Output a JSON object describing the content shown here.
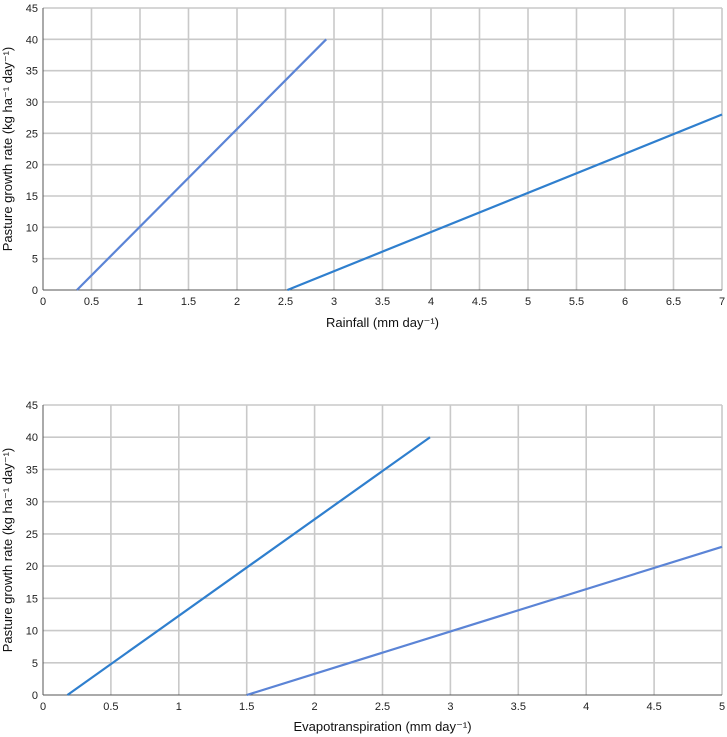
{
  "chart_data": [
    {
      "type": "line",
      "xlabel": "Rainfall (mm day⁻¹)",
      "ylabel": "Pasture growth rate (kg ha⁻¹ day⁻¹)",
      "xlim": [
        0,
        7
      ],
      "ylim": [
        0,
        45
      ],
      "xticks": [
        "0",
        "0.5",
        "1",
        "1.5",
        "2",
        "2.5",
        "3",
        "3.5",
        "4",
        "4.5",
        "5",
        "5.5",
        "6",
        "6.5",
        "7"
      ],
      "yticks": [
        "0",
        "5",
        "10",
        "15",
        "20",
        "25",
        "30",
        "35",
        "40",
        "45"
      ],
      "grid": true,
      "series": [
        {
          "color": "#5b84d6",
          "points": [
            [
              0.35,
              0
            ],
            [
              2.92,
              40
            ]
          ]
        },
        {
          "color": "#2f7fce",
          "points": [
            [
              2.52,
              0
            ],
            [
              7.0,
              28
            ]
          ]
        }
      ]
    },
    {
      "type": "line",
      "xlabel": "Evapotranspiration (mm day⁻¹)",
      "ylabel": "Pasture growth rate (kg ha⁻¹ day⁻¹)",
      "xlim": [
        0,
        5
      ],
      "ylim": [
        0,
        45
      ],
      "xticks": [
        "0",
        "0.5",
        "1",
        "1.5",
        "2",
        "2.5",
        "3",
        "3.5",
        "4",
        "4.5",
        "5"
      ],
      "yticks": [
        "0",
        "5",
        "10",
        "15",
        "20",
        "25",
        "30",
        "35",
        "40",
        "45"
      ],
      "grid": true,
      "series": [
        {
          "color": "#2f7fce",
          "points": [
            [
              0.18,
              0
            ],
            [
              2.85,
              40
            ]
          ]
        },
        {
          "color": "#5b84d6",
          "points": [
            [
              1.5,
              0
            ],
            [
              5.0,
              23
            ]
          ]
        }
      ]
    }
  ]
}
